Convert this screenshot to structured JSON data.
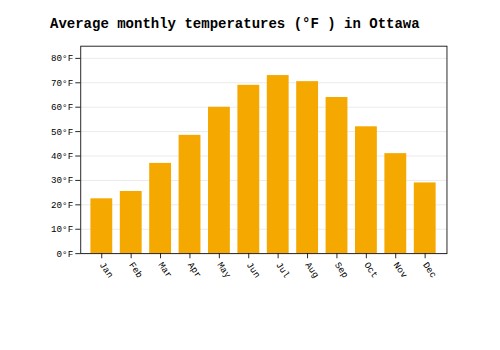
{
  "chart_data": {
    "type": "bar",
    "title": "Average monthly temperatures (°F ) in Ottawa",
    "categories": [
      "Jan",
      "Feb",
      "Mar",
      "Apr",
      "May",
      "Jun",
      "Jul",
      "Aug",
      "Sep",
      "Oct",
      "Nov",
      "Dec"
    ],
    "values": [
      22.5,
      25.5,
      37.0,
      48.5,
      60.0,
      69.0,
      73.0,
      70.5,
      64.0,
      52.0,
      41.0,
      29.0
    ],
    "color": "#F5A800",
    "ylim": [
      0,
      85
    ],
    "yticks": [
      {
        "value": 0,
        "label": "0°F"
      },
      {
        "value": 10,
        "label": "10°F"
      },
      {
        "value": 20,
        "label": "20°F"
      },
      {
        "value": 30,
        "label": "30°F"
      },
      {
        "value": 40,
        "label": "40°F"
      },
      {
        "value": 50,
        "label": "50°F"
      },
      {
        "value": 60,
        "label": "60°F"
      },
      {
        "value": 70,
        "label": "70°F"
      },
      {
        "value": 80,
        "label": "80°F"
      }
    ],
    "grid": true
  }
}
